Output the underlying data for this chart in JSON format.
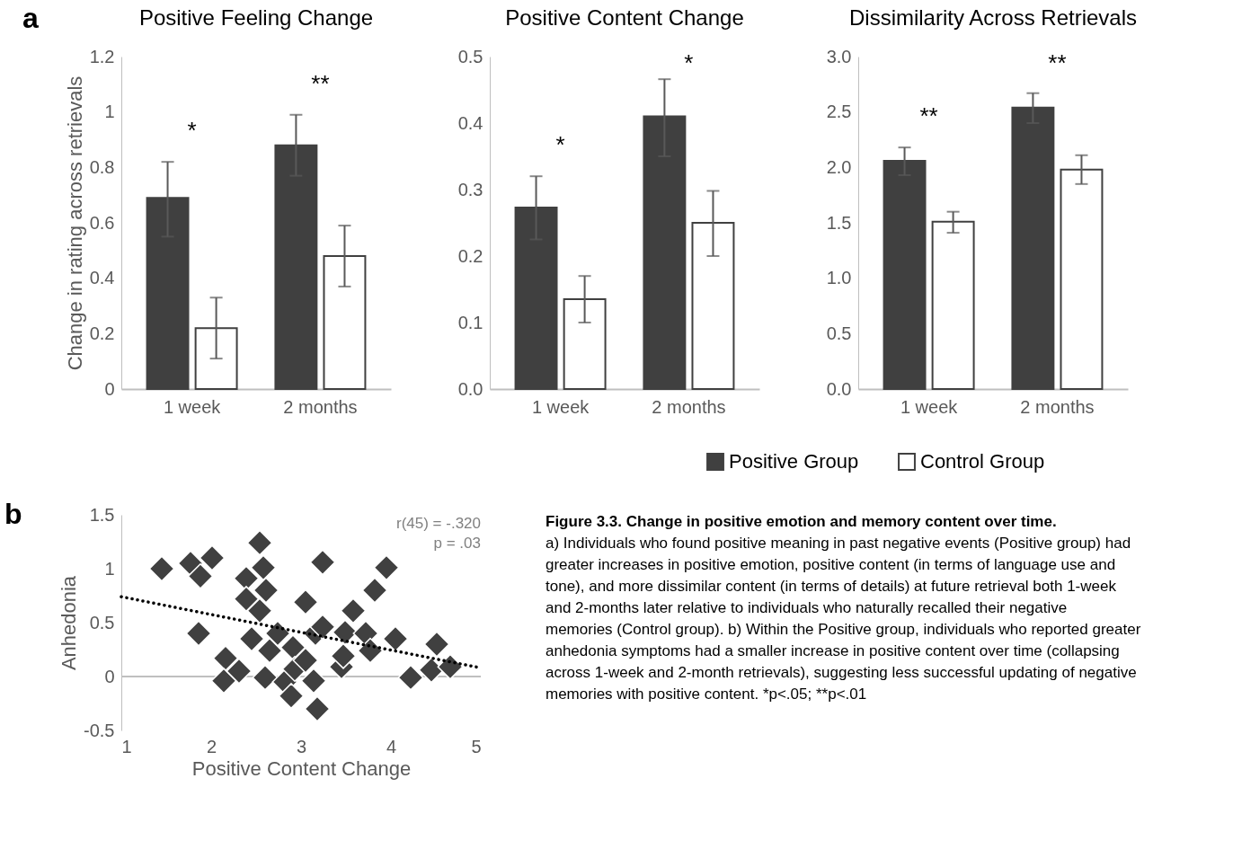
{
  "chart_data": [
    {
      "type": "bar",
      "title": "Positive Feeling Change",
      "ylabel": "Change in rating across retrievals",
      "categories": [
        "1 week",
        "2 months"
      ],
      "series": [
        {
          "color": "#404040",
          "values": [
            0.69,
            0.88
          ],
          "errors": [
            [
              0.55,
              0.82
            ],
            [
              0.77,
              0.99
            ]
          ]
        },
        {
          "color": "#ffffff",
          "values": [
            0.22,
            0.48
          ],
          "errors": [
            [
              0.11,
              0.33
            ],
            [
              0.37,
              0.59
            ]
          ]
        }
      ],
      "ylim": [
        0,
        1.2
      ],
      "yticks": [
        0,
        0.2,
        0.4,
        0.6,
        0.8,
        1,
        1.2
      ],
      "annotations": [
        "a",
        "*",
        "**"
      ]
    },
    {
      "type": "bar",
      "title": "Positive Content Change",
      "categories": [
        "1 week",
        "2 months"
      ],
      "series": [
        {
          "name": "Positive Group",
          "color": "#404040",
          "values": [
            0.273,
            0.41
          ],
          "errors": [
            [
              0.225,
              0.32
            ],
            [
              0.35,
              0.466
            ]
          ]
        },
        {
          "name": "Control Group",
          "color": "#ffffff",
          "values": [
            0.135,
            0.25
          ],
          "errors": [
            [
              0.1,
              0.17
            ],
            [
              0.2,
              0.298
            ]
          ]
        }
      ],
      "ylim": [
        0,
        0.5
      ],
      "yticks": [
        {
          "value": 0,
          "label": "0.0"
        },
        0.1,
        0.2,
        0.3,
        0.4,
        0.5
      ],
      "legend": "bottom",
      "annotations": [
        "*",
        "*"
      ]
    },
    {
      "type": "bar",
      "title": "Dissimilarity Across Retrievals",
      "categories": [
        "1 week",
        "2 months"
      ],
      "series": [
        {
          "color": "#404040",
          "values": [
            2.06,
            2.54
          ],
          "errors": [
            [
              1.93,
              2.18
            ],
            [
              2.4,
              2.67
            ]
          ]
        },
        {
          "color": "#ffffff",
          "values": [
            1.51,
            1.98
          ],
          "errors": [
            [
              1.41,
              1.6
            ],
            [
              1.85,
              2.11
            ]
          ]
        }
      ],
      "ylim": [
        0,
        3
      ],
      "yticks": [
        {
          "value": 0,
          "label": "0.0"
        },
        0.5,
        {
          "value": 1,
          "label": "1.0"
        },
        1.5,
        {
          "value": 2,
          "label": "2.0"
        },
        2.5,
        {
          "value": 3,
          "label": "3.0"
        }
      ],
      "annotations": [
        "**",
        "**"
      ]
    },
    {
      "type": "scatter",
      "xlabel": "Positive Content Change",
      "ylabel": "Anhedonia",
      "marker": "diamond",
      "series": [
        {
          "type": "scatter",
          "color": "#404040",
          "x": [
            1.45,
            1.77,
            2.01,
            1.88,
            1.86,
            2.16,
            2.14,
            2.31,
            2.39,
            2.54,
            2.58,
            2.61,
            2.39,
            2.54,
            2.45,
            2.65,
            2.74,
            2.6,
            2.82,
            2.89,
            2.91,
            2.93,
            3.05,
            3.05,
            3.16,
            3.24,
            3.14,
            3.18,
            3.24,
            3.45,
            3.47,
            3.49,
            3.58,
            3.72,
            3.77,
            3.82,
            3.95,
            4.05,
            4.22,
            4.45,
            4.51,
            4.66
          ],
          "values": [
            1.0,
            1.05,
            1.1,
            0.93,
            0.4,
            0.17,
            -0.04,
            0.05,
            0.91,
            1.24,
            1.01,
            0.8,
            0.72,
            0.61,
            0.35,
            0.24,
            0.4,
            -0.01,
            -0.05,
            -0.18,
            0.27,
            0.07,
            0.15,
            0.69,
            0.4,
            0.46,
            -0.04,
            -0.3,
            1.06,
            0.09,
            0.19,
            0.41,
            0.61,
            0.4,
            0.24,
            0.8,
            1.01,
            0.35,
            -0.01,
            0.06,
            0.3,
            0.09
          ]
        },
        {
          "type": "line",
          "color": "#000000",
          "x": [
            1,
            5
          ],
          "values": [
            0.74,
            0.08
          ],
          "line_style": "dotted",
          "marker": "none"
        }
      ],
      "xlim": [
        1,
        5
      ],
      "xticks": [
        1,
        2,
        3,
        4,
        5
      ],
      "ylim": [
        -0.5,
        1.5
      ],
      "yticks": [
        -0.5,
        0,
        0.5,
        1,
        1.5
      ],
      "ref_lines": [
        {
          "axis": "y",
          "value": 0,
          "color": "#bfbfbf"
        }
      ],
      "annotations": [
        "b",
        "r(45) = -.320",
        "p = .03",
        "Figure 3.3. Change in positive emotion and memory content over time.",
        "a) Individuals who found positive meaning in past negative events (Positive group) had greater increases in positive emotion, positive content (in terms of language use and tone), and more dissimilar content (in terms of details) at future retrieval both 1-week and 2-months later relative to individuals who naturally recalled their negative memories (Control group). b) Within the Positive group, individuals who reported greater anhedonia symptoms had a smaller increase in positive content over time (collapsing across 1-week and 2-month retrievals), suggesting less successful updating of negative memories with positive content. *p<.05; **p<.01"
      ]
    }
  ]
}
